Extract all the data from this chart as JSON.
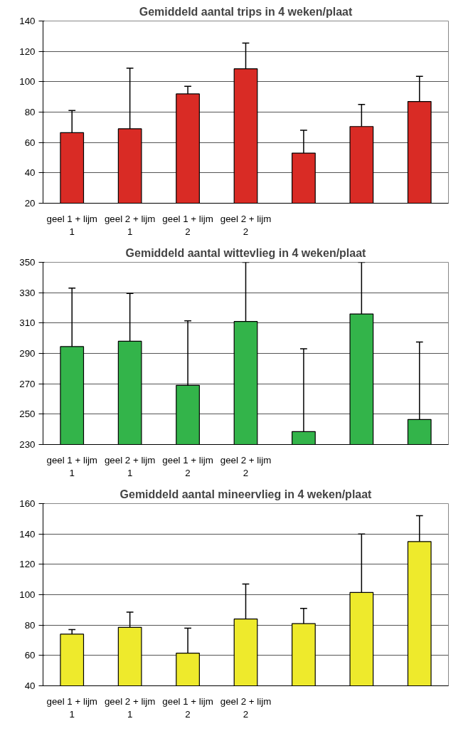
{
  "chart_data": [
    {
      "type": "bar",
      "title": "Gemiddeld aantal trips in 4 weken/plaat",
      "categories": [
        "geel 1 + lijm 1",
        "geel 2 + lijm 1",
        "geel 1 + lijm 2",
        "geel 2 + lijm 2",
        null,
        null,
        null
      ],
      "values": [
        66.5,
        69,
        92,
        108.5,
        53,
        70.5,
        87
      ],
      "errors": [
        [
          66.5,
          81
        ],
        [
          69,
          109
        ],
        [
          92,
          97
        ],
        [
          108.5,
          125.5
        ],
        [
          53,
          68
        ],
        [
          70.5,
          85
        ],
        [
          87,
          103.5
        ]
      ],
      "color": "#d92b25",
      "ylim": [
        20,
        140
      ],
      "yticks": [
        20,
        40,
        60,
        80,
        100,
        120,
        140
      ],
      "grid": "y"
    },
    {
      "type": "bar",
      "title": "Gemiddeld aantal wittevlieg in 4 weken/plaat",
      "categories": [
        "geel 1 + lijm 1",
        "geel 2 + lijm 1",
        "geel 1 + lijm 2",
        "geel 2 + lijm 2",
        null,
        null,
        null
      ],
      "values": [
        294.5,
        298,
        269,
        311,
        238.5,
        316,
        246.5
      ],
      "errors": [
        [
          294.5,
          333
        ],
        [
          298,
          329.5
        ],
        [
          269,
          311.5
        ],
        [
          311,
          350
        ],
        [
          238.5,
          293
        ],
        [
          316,
          350
        ],
        [
          246.5,
          297.5
        ]
      ],
      "color": "#33b44a",
      "ylim": [
        230,
        350
      ],
      "yticks": [
        230,
        250,
        270,
        290,
        310,
        330,
        350
      ],
      "grid": "y"
    },
    {
      "type": "bar",
      "title": "Gemiddeld aantal mineervlieg in 4 weken/plaat",
      "categories": [
        "geel 1 + lijm 1",
        "geel 2 + lijm 1",
        "geel 1 + lijm 2",
        "geel 2 + lijm 2",
        null,
        null,
        null
      ],
      "values": [
        74,
        78.5,
        61.5,
        84,
        81,
        101.5,
        135
      ],
      "errors": [
        [
          74,
          77
        ],
        [
          78.5,
          88.5
        ],
        [
          61.5,
          78
        ],
        [
          84,
          107
        ],
        [
          81,
          91
        ],
        [
          101.5,
          140
        ],
        [
          135,
          152
        ]
      ],
      "color": "#eeea2c",
      "ylim": [
        40,
        160
      ],
      "yticks": [
        40,
        60,
        80,
        100,
        120,
        140,
        160
      ],
      "grid": "y"
    }
  ]
}
